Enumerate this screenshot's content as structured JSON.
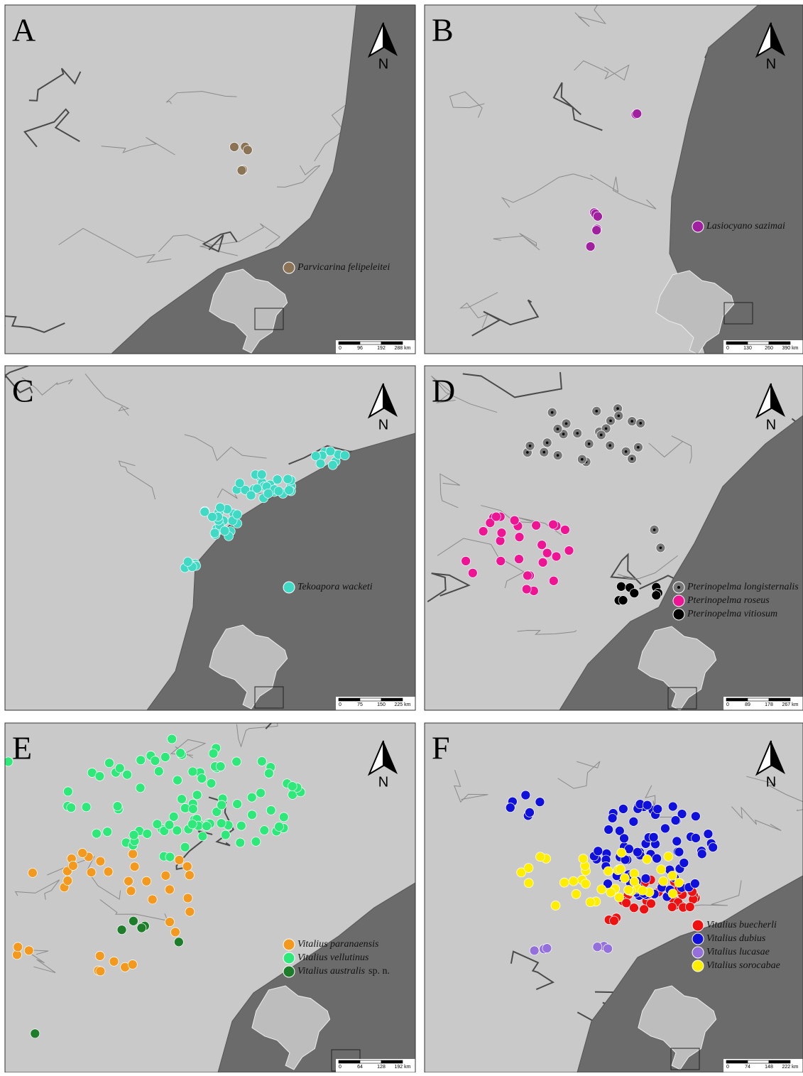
{
  "panels": [
    {
      "letter": "A",
      "north": "N",
      "legend": [
        {
          "name": "Parvicarina felipeleitei",
          "color": "#8b7355"
        }
      ],
      "scale_labels": [
        "0",
        "96",
        "192",
        "288 km"
      ]
    },
    {
      "letter": "B",
      "north": "N",
      "legend": [
        {
          "name": "Lasiocyano sazimai",
          "color": "#a020a0"
        }
      ],
      "scale_labels": [
        "0",
        "130",
        "260",
        "390 km"
      ]
    },
    {
      "letter": "C",
      "north": "N",
      "legend": [
        {
          "name": "Tekoapora wacketi",
          "color": "#3fd9c4"
        }
      ],
      "scale_labels": [
        "0",
        "75",
        "150",
        "225 km"
      ]
    },
    {
      "letter": "D",
      "north": "N",
      "legend": [
        {
          "name": "Pterinopelma longisternalis",
          "color": "#777777"
        },
        {
          "name": "Pterinopelma roseus",
          "color": "#ee1493"
        },
        {
          "name": "Pterinopelma vitiosum",
          "color": "#000000"
        }
      ],
      "scale_labels": [
        "0",
        "89",
        "178",
        "267 km"
      ]
    },
    {
      "letter": "E",
      "north": "N",
      "legend": [
        {
          "name": "Vitalius paranaensis",
          "color": "#f39a1e"
        },
        {
          "name": "Vitalius vellutinus",
          "color": "#2ee87a"
        },
        {
          "name": "Vitalius australis",
          "note": "sp. n.",
          "color": "#1e7d2a"
        }
      ],
      "scale_labels": [
        "0",
        "64",
        "128",
        "192 km"
      ]
    },
    {
      "letter": "F",
      "north": "N",
      "legend": [
        {
          "name": "Vitalius buecherli",
          "color": "#ee1111"
        },
        {
          "name": "Vitalius dubius",
          "color": "#1010dd"
        },
        {
          "name": "Vitalius lucasae",
          "color": "#9370db"
        },
        {
          "name": "Vitalius sorocabae",
          "color": "#ffee00"
        }
      ],
      "scale_labels": [
        "0",
        "74",
        "148",
        "222 km"
      ]
    }
  ]
}
